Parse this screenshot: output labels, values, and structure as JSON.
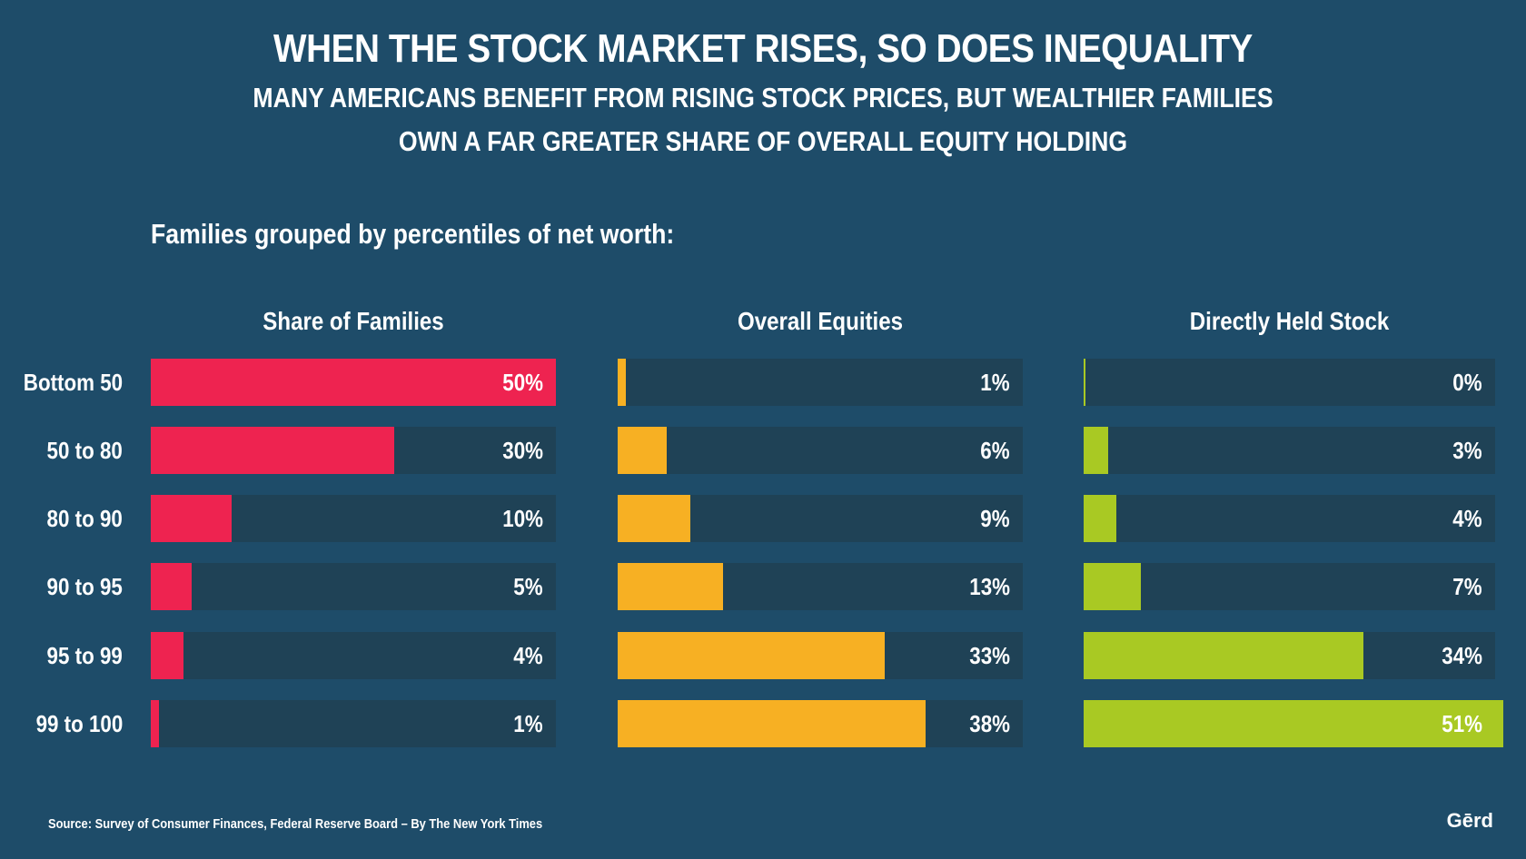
{
  "header": {
    "title": "WHEN THE STOCK MARKET RISES, SO DOES INEQUALITY",
    "subtitle_line1": "MANY AMERICANS BENEFIT FROM RISING STOCK PRICES, BUT WEALTHIER FAMILIES",
    "subtitle_line2": "OWN A FAR GREATER SHARE OF OVERALL EQUITY HOLDING"
  },
  "group_label": "Families grouped by percentiles of net worth:",
  "footer": {
    "source": "Source: Survey of Consumer Finances, Federal Reserve Board – By The New York Times",
    "logo": "Gērd"
  },
  "chart_data": {
    "type": "bar",
    "orientation": "horizontal",
    "categories": [
      "Bottom 50",
      "50 to 80",
      "80 to 90",
      "90 to 95",
      "95 to 99",
      "99 to 100"
    ],
    "series": [
      {
        "name": "Share of Families",
        "values": [
          50,
          30,
          10,
          5,
          4,
          1
        ],
        "labels": [
          "50%",
          "30%",
          "10%",
          "5%",
          "4%",
          "1%"
        ],
        "color": "#ee2350"
      },
      {
        "name": "Overall Equities",
        "values": [
          1,
          6,
          9,
          13,
          33,
          38
        ],
        "labels": [
          "1%",
          "6%",
          "9%",
          "13%",
          "33%",
          "38%"
        ],
        "color": "#f7b023"
      },
      {
        "name": "Directly Held Stock",
        "values": [
          0,
          3,
          4,
          7,
          34,
          51
        ],
        "labels": [
          "0%",
          "3%",
          "4%",
          "7%",
          "34%",
          "51%"
        ],
        "color": "#a9c923"
      }
    ],
    "xlim": [
      0,
      50
    ],
    "track_color": "#1f4256",
    "background_color": "#1e4c69"
  }
}
